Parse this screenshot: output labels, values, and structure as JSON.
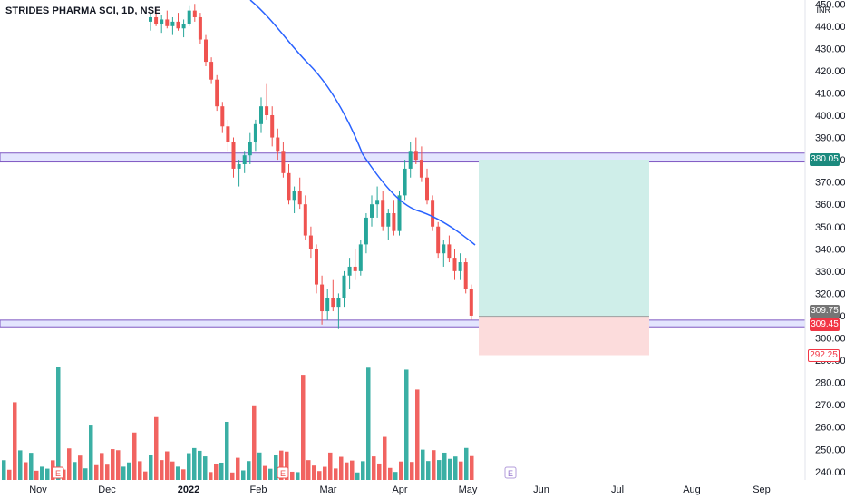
{
  "symbol": {
    "title": "STRIDES PHARMA SCI, 1D, NSE",
    "currency": "INR"
  },
  "colors": {
    "up": "#26a69a",
    "down": "#ef5350",
    "ma": "#2962ff",
    "zone_fill": "#d1d4fd",
    "zone_border": "#7e57c2",
    "target_fill": "#cfeee9",
    "stop_fill": "#fcdcdc",
    "label_target": "#1b8a7e",
    "label_entry": "#757575",
    "label_stop": "#f23645"
  },
  "price_axis": {
    "ticks": [
      450,
      440,
      430,
      420,
      410,
      400,
      390,
      380,
      370,
      360,
      350,
      340,
      330,
      320,
      310,
      300,
      290,
      280,
      270,
      260,
      250,
      240
    ],
    "tick_labels": [
      "450.00",
      "440.00",
      "430.00",
      "420.00",
      "410.00",
      "400.00",
      "390.00",
      "380.00",
      "370.00",
      "360.00",
      "350.00",
      "340.00",
      "330.00",
      "320.00",
      "310.00",
      "300.00",
      "290.00",
      "280.00",
      "270.00",
      "260.00",
      "250.00",
      "240.00"
    ],
    "labels": [
      {
        "text": "380.05",
        "kind": "target"
      },
      {
        "text": "309.75",
        "kind": "entry"
      },
      {
        "text": "309.45",
        "kind": "stop_line"
      },
      {
        "text": "292.25",
        "kind": "stop"
      }
    ]
  },
  "time_axis": {
    "labels": [
      "Nov",
      "Dec",
      "2022",
      "Feb",
      "Mar",
      "Apr",
      "May",
      "Jun",
      "Jul",
      "Aug",
      "Sep"
    ],
    "bold": "2022"
  },
  "zones": [
    {
      "name": "resistance",
      "top": 383,
      "bottom": 379
    },
    {
      "name": "support",
      "top": 308,
      "bottom": 305
    }
  ],
  "position": {
    "entry": 309.75,
    "target": 380.05,
    "stop": 292.25
  },
  "events": [
    "E",
    "E",
    "E"
  ],
  "chart_data": {
    "type": "candlestick",
    "interval": "1D",
    "note": "approximate daily OHLC read from the chart",
    "dates": [],
    "ohlc": [
      [
        442,
        446,
        438,
        444
      ],
      [
        444,
        448,
        440,
        441
      ],
      [
        441,
        445,
        437,
        443
      ],
      [
        443,
        447,
        439,
        440
      ],
      [
        440,
        444,
        436,
        442
      ],
      [
        442,
        446,
        438,
        439
      ],
      [
        439,
        443,
        435,
        441
      ],
      [
        441,
        449,
        440,
        447
      ],
      [
        447,
        450,
        442,
        444
      ],
      [
        444,
        446,
        432,
        434
      ],
      [
        434,
        436,
        422,
        424
      ],
      [
        424,
        426,
        414,
        416
      ],
      [
        416,
        418,
        402,
        404
      ],
      [
        404,
        406,
        392,
        395
      ],
      [
        395,
        398,
        384,
        388
      ],
      [
        388,
        390,
        372,
        376
      ],
      [
        376,
        380,
        368,
        378
      ],
      [
        378,
        384,
        374,
        382
      ],
      [
        382,
        392,
        378,
        388
      ],
      [
        388,
        398,
        384,
        396
      ],
      [
        396,
        408,
        392,
        404
      ],
      [
        404,
        414,
        398,
        400
      ],
      [
        400,
        404,
        386,
        390
      ],
      [
        390,
        394,
        380,
        384
      ],
      [
        384,
        388,
        372,
        374
      ],
      [
        374,
        378,
        360,
        362
      ],
      [
        362,
        368,
        356,
        366
      ],
      [
        366,
        372,
        358,
        360
      ],
      [
        360,
        364,
        344,
        346
      ],
      [
        346,
        350,
        336,
        340
      ],
      [
        340,
        342,
        320,
        324
      ],
      [
        324,
        328,
        306,
        312
      ],
      [
        312,
        322,
        308,
        318
      ],
      [
        318,
        326,
        312,
        314
      ],
      [
        314,
        320,
        304,
        318
      ],
      [
        318,
        330,
        314,
        328
      ],
      [
        328,
        336,
        322,
        332
      ],
      [
        332,
        340,
        326,
        330
      ],
      [
        330,
        344,
        328,
        342
      ],
      [
        342,
        356,
        338,
        354
      ],
      [
        354,
        364,
        350,
        360
      ],
      [
        360,
        368,
        354,
        362
      ],
      [
        362,
        366,
        348,
        350
      ],
      [
        350,
        358,
        344,
        356
      ],
      [
        356,
        362,
        346,
        348
      ],
      [
        348,
        366,
        346,
        364
      ],
      [
        364,
        380,
        362,
        376
      ],
      [
        376,
        388,
        372,
        384
      ],
      [
        384,
        390,
        378,
        380
      ],
      [
        380,
        386,
        370,
        372
      ],
      [
        372,
        376,
        360,
        362
      ],
      [
        362,
        364,
        348,
        350
      ],
      [
        350,
        352,
        336,
        338
      ],
      [
        338,
        344,
        332,
        342
      ],
      [
        342,
        346,
        334,
        336
      ],
      [
        336,
        340,
        326,
        330
      ],
      [
        330,
        338,
        326,
        334
      ],
      [
        334,
        336,
        320,
        322
      ],
      [
        322,
        324,
        308,
        310
      ]
    ],
    "ma": [
      null
    ],
    "ylim": [
      235,
      455
    ]
  }
}
